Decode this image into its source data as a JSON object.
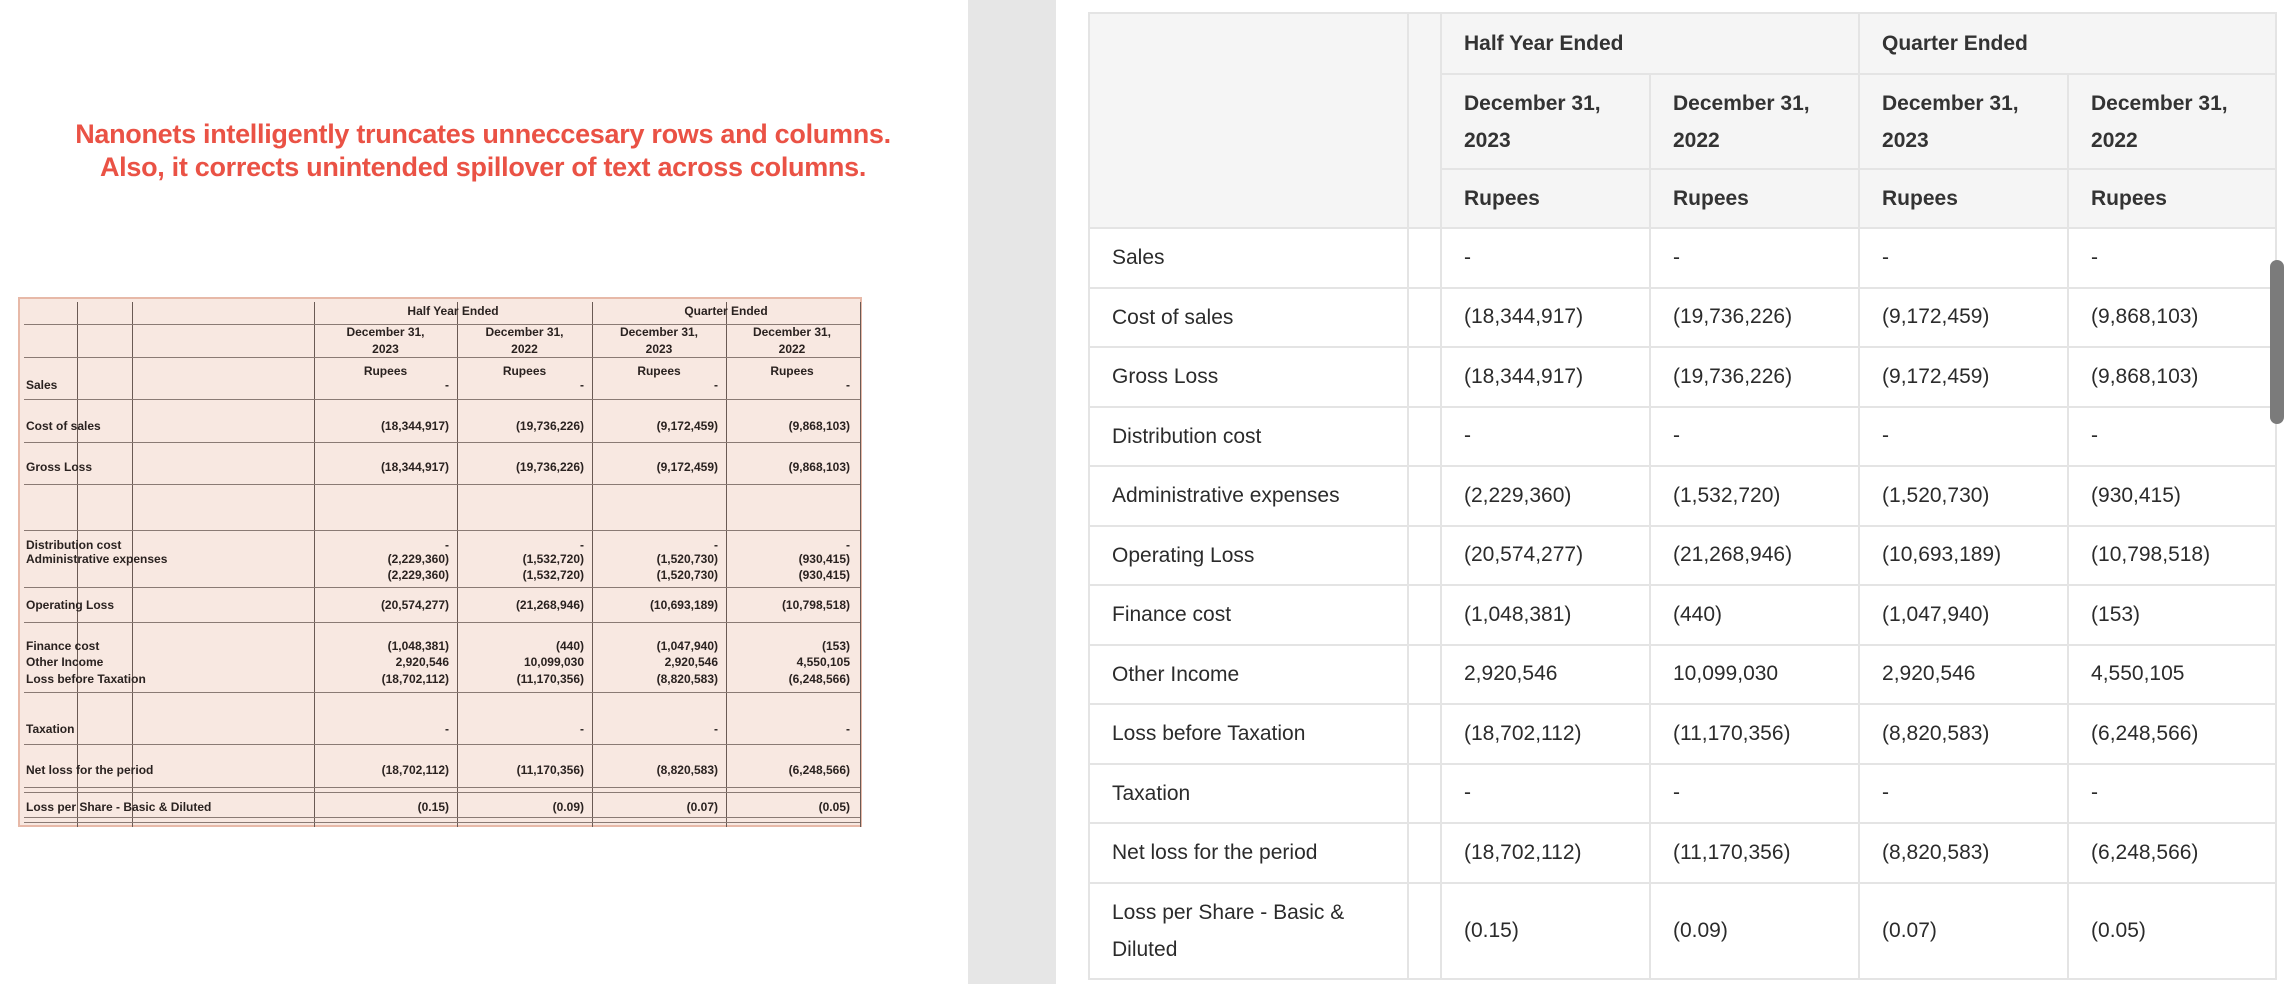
{
  "caption": {
    "line1": "Nanonets intelligently truncates unneccesary rows and columns.",
    "line2": "Also, it corrects unintended spillover of text across columns."
  },
  "scan": {
    "group_headers": [
      "Half Year Ended",
      "Quarter Ended"
    ],
    "date_headers": [
      "December 31,",
      "December 31,",
      "December 31,",
      "December 31,"
    ],
    "year_headers": [
      "2023",
      "2022",
      "2023",
      "2022"
    ],
    "unit_headers": [
      "Rupees",
      "Rupees",
      "Rupees",
      "Rupees"
    ],
    "rows": [
      {
        "label": "Sales",
        "values": [
          "-",
          "-",
          "-",
          "-"
        ]
      },
      {
        "label": "Cost of sales",
        "values": [
          "(18,344,917)",
          "(19,736,226)",
          "(9,172,459)",
          "(9,868,103)"
        ]
      },
      {
        "label": "Gross Loss",
        "values": [
          "(18,344,917)",
          "(19,736,226)",
          "(9,172,459)",
          "(9,868,103)"
        ]
      },
      {
        "label": "Distribution cost",
        "values": [
          "-",
          "-",
          "-",
          "-"
        ]
      },
      {
        "label": "Administrative expenses",
        "values": [
          "(2,229,360)",
          "(1,532,720)",
          "(1,520,730)",
          "(930,415)"
        ]
      },
      {
        "label": "",
        "values": [
          "(2,229,360)",
          "(1,532,720)",
          "(1,520,730)",
          "(930,415)"
        ]
      },
      {
        "label": "Operating Loss",
        "values": [
          "(20,574,277)",
          "(21,268,946)",
          "(10,693,189)",
          "(10,798,518)"
        ]
      },
      {
        "label": "Finance cost",
        "values": [
          "(1,048,381)",
          "(440)",
          "(1,047,940)",
          "(153)"
        ]
      },
      {
        "label": "Other Income",
        "values": [
          "2,920,546",
          "10,099,030",
          "2,920,546",
          "4,550,105"
        ]
      },
      {
        "label": "Loss before Taxation",
        "values": [
          "(18,702,112)",
          "(11,170,356)",
          "(8,820,583)",
          "(6,248,566)"
        ]
      },
      {
        "label": "Taxation",
        "values": [
          "-",
          "-",
          "-",
          "-"
        ]
      },
      {
        "label": "Net loss for the period",
        "values": [
          "(18,702,112)",
          "(11,170,356)",
          "(8,820,583)",
          "(6,248,566)"
        ]
      },
      {
        "label": "Loss per Share - Basic & Diluted",
        "values": [
          "(0.15)",
          "(0.09)",
          "(0.07)",
          "(0.05)"
        ]
      }
    ]
  },
  "table": {
    "group_headers": [
      "Half Year Ended",
      "Quarter Ended"
    ],
    "date_headers": [
      "December 31, 2023",
      "December 31, 2022",
      "December 31, 2023",
      "December 31, 2022"
    ],
    "unit_headers": [
      "Rupees",
      "Rupees",
      "Rupees",
      "Rupees"
    ],
    "rows": [
      {
        "label": "Sales",
        "values": [
          "-",
          "-",
          "-",
          "-"
        ]
      },
      {
        "label": "Cost of sales",
        "values": [
          "(18,344,917)",
          "(19,736,226)",
          "(9,172,459)",
          "(9,868,103)"
        ]
      },
      {
        "label": "Gross Loss",
        "values": [
          "(18,344,917)",
          "(19,736,226)",
          "(9,172,459)",
          "(9,868,103)"
        ]
      },
      {
        "label": "Distribution cost",
        "values": [
          "-",
          "-",
          "-",
          "-"
        ]
      },
      {
        "label": "Administrative expenses",
        "values": [
          "(2,229,360)",
          "(1,532,720)",
          "(1,520,730)",
          "(930,415)"
        ]
      },
      {
        "label": "Operating Loss",
        "values": [
          "(20,574,277)",
          "(21,268,946)",
          "(10,693,189)",
          "(10,798,518)"
        ]
      },
      {
        "label": "Finance cost",
        "values": [
          "(1,048,381)",
          "(440)",
          "(1,047,940)",
          "(153)"
        ]
      },
      {
        "label": "Other Income",
        "values": [
          "2,920,546",
          "10,099,030",
          "2,920,546",
          "4,550,105"
        ]
      },
      {
        "label": "Loss before Taxation",
        "values": [
          "(18,702,112)",
          "(11,170,356)",
          "(8,820,583)",
          "(6,248,566)"
        ]
      },
      {
        "label": "Taxation",
        "values": [
          "-",
          "-",
          "-",
          "-"
        ]
      },
      {
        "label": "Net loss for the period",
        "values": [
          "(18,702,112)",
          "(11,170,356)",
          "(8,820,583)",
          "(6,248,566)"
        ]
      },
      {
        "label": "Loss per Share - Basic & Diluted",
        "values": [
          "(0.15)",
          "(0.09)",
          "(0.07)",
          "(0.05)"
        ]
      }
    ]
  },
  "colors": {
    "caption": "#ea5245",
    "scan_background": "#f8e8e1",
    "header_background": "#f5f5f5",
    "gutter": "#e6e6e6"
  }
}
